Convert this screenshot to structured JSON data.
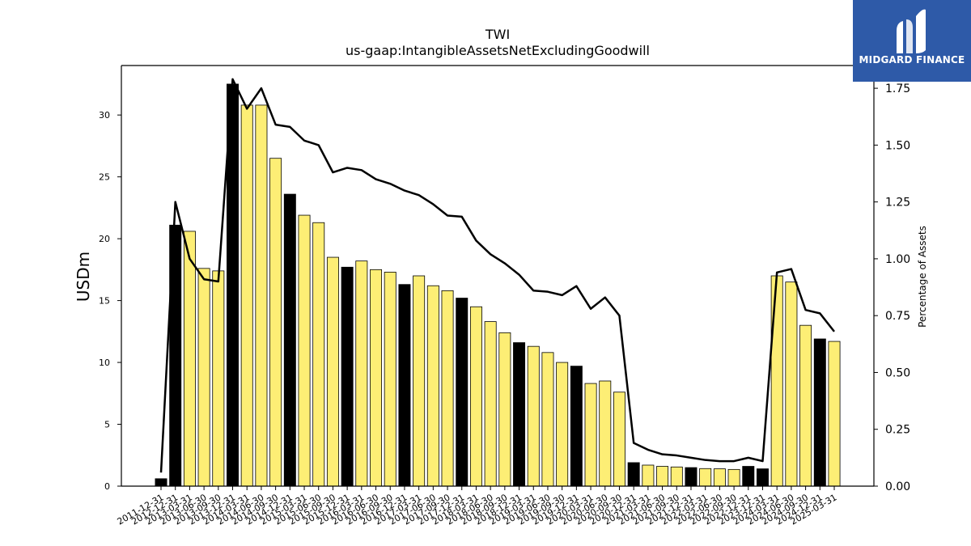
{
  "chart_data": {
    "type": "bar",
    "title": "TWI",
    "subtitle": "us-gaap:IntangibleAssetsNetExcludingGoodwill",
    "ylabel": "USDm",
    "y2label": "Percentage of Assets",
    "ylim": [
      0,
      34
    ],
    "y2lim": [
      0,
      1.85
    ],
    "yticks": [
      0,
      5,
      10,
      15,
      20,
      25,
      30
    ],
    "y2ticks": [
      0.0,
      0.25,
      0.5,
      0.75,
      1.0,
      1.25,
      1.5,
      1.75
    ],
    "y2tick_labels": [
      "0.00",
      "0.25",
      "0.50",
      "0.75",
      "1.00",
      "1.25",
      "1.50",
      "1.75"
    ],
    "categories": [
      "2011-12-31",
      "2012-12-31",
      "2013-03-31",
      "2013-06-30",
      "2013-09-30",
      "2013-12-31",
      "2014-03-31",
      "2014-06-30",
      "2014-09-30",
      "2014-12-31",
      "2015-03-31",
      "2015-06-30",
      "2015-09-30",
      "2015-12-31",
      "2016-03-31",
      "2016-06-30",
      "2016-09-30",
      "2016-12-31",
      "2017-03-31",
      "2017-06-30",
      "2017-09-30",
      "2017-12-31",
      "2018-03-31",
      "2018-06-30",
      "2018-09-30",
      "2018-12-31",
      "2019-03-31",
      "2019-06-30",
      "2019-09-30",
      "2019-12-31",
      "2020-03-31",
      "2020-06-30",
      "2020-09-30",
      "2020-12-31",
      "2021-03-31",
      "2021-06-30",
      "2021-09-30",
      "2021-12-31",
      "2022-03-31",
      "2022-06-30",
      "2022-09-30",
      "2022-12-31",
      "2023-12-31",
      "2024-03-31",
      "2024-06-30",
      "2024-09-30",
      "2024-12-31",
      "2025-03-31"
    ],
    "series": [
      {
        "axis": "left",
        "type": "bar",
        "values": [
          0.6,
          21.1,
          20.6,
          17.6,
          17.4,
          32.5,
          30.8,
          30.8,
          26.5,
          23.6,
          21.9,
          21.3,
          18.5,
          17.7,
          18.2,
          17.5,
          17.3,
          16.3,
          17.0,
          16.2,
          15.8,
          15.2,
          14.5,
          13.3,
          12.4,
          11.6,
          11.3,
          10.8,
          10.0,
          9.7,
          8.3,
          8.5,
          7.6,
          1.9,
          1.7,
          1.6,
          1.55,
          1.5,
          1.42,
          1.4,
          1.35,
          1.6,
          1.4,
          17.0,
          16.5,
          13.0,
          11.9,
          11.7
        ],
        "colors": [
          "black",
          "black",
          "yellow",
          "yellow",
          "yellow",
          "black",
          "yellow",
          "yellow",
          "yellow",
          "black",
          "yellow",
          "yellow",
          "yellow",
          "black",
          "yellow",
          "yellow",
          "yellow",
          "black",
          "yellow",
          "yellow",
          "yellow",
          "black",
          "yellow",
          "yellow",
          "yellow",
          "black",
          "yellow",
          "yellow",
          "yellow",
          "black",
          "yellow",
          "yellow",
          "yellow",
          "black",
          "yellow",
          "yellow",
          "yellow",
          "black",
          "yellow",
          "yellow",
          "yellow",
          "black",
          "black",
          "yellow",
          "yellow",
          "yellow",
          "black",
          "yellow"
        ]
      },
      {
        "axis": "right",
        "type": "line",
        "values": [
          0.06,
          1.25,
          1.0,
          0.91,
          0.9,
          1.79,
          1.66,
          1.75,
          1.59,
          1.58,
          1.52,
          1.5,
          1.38,
          1.4,
          1.39,
          1.35,
          1.33,
          1.3,
          1.28,
          1.24,
          1.19,
          1.185,
          1.08,
          1.02,
          0.98,
          0.93,
          0.86,
          0.855,
          0.84,
          0.88,
          0.78,
          0.83,
          0.75,
          0.19,
          0.16,
          0.14,
          0.135,
          0.125,
          0.115,
          0.11,
          0.11,
          0.125,
          0.11,
          0.94,
          0.955,
          0.775,
          0.76,
          0.68
        ]
      }
    ],
    "colors": {
      "yellow": "#fdee75",
      "black": "#000000",
      "line": "#000000",
      "logo_bg": "#2e5aa8"
    }
  },
  "logo": {
    "text": "MIDGARD FINANCE"
  }
}
